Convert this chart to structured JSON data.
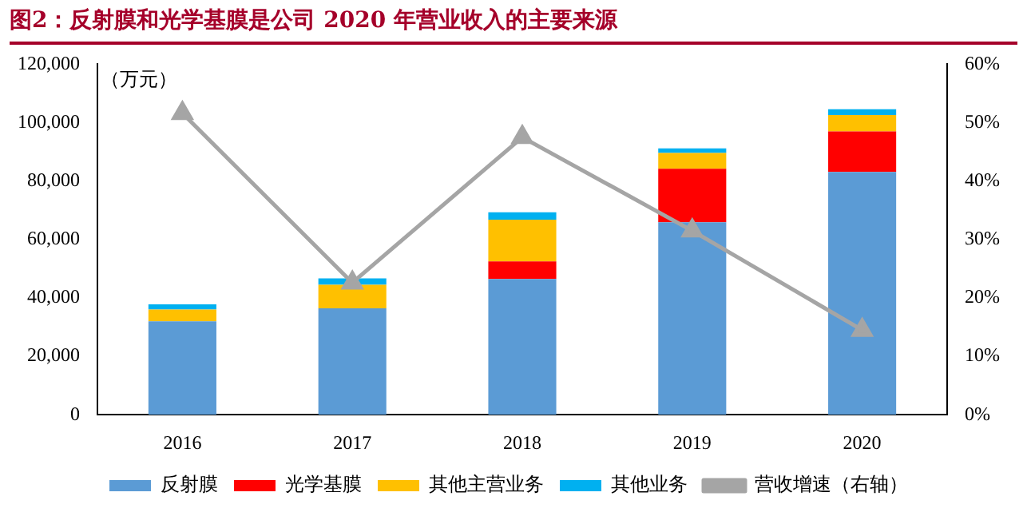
{
  "chart_data": {
    "type": "bar",
    "stacked": true,
    "title": "图2：反射膜和光学基膜是公司 2020 年营业收入的主要来源",
    "ylabel": "（万元）",
    "categories": [
      "2016",
      "2017",
      "2018",
      "2019",
      "2020"
    ],
    "series": [
      {
        "name": "反射膜",
        "color": "#5b9bd5",
        "values": [
          32000,
          36400,
          46500,
          65900,
          83100
        ]
      },
      {
        "name": "光学基膜",
        "color": "#ff0000",
        "values": [
          0,
          0,
          6000,
          18300,
          13900
        ]
      },
      {
        "name": "其他主营业务",
        "color": "#ffc000",
        "values": [
          4000,
          8100,
          14300,
          5400,
          5600
        ]
      },
      {
        "name": "其他业务",
        "color": "#00b0f0",
        "values": [
          1800,
          2200,
          2500,
          1600,
          2000
        ]
      },
      {
        "name": "营收增速（右轴）",
        "type": "line",
        "axis": "y2",
        "color": "#a5a5a5",
        "marker": "triangle",
        "values": [
          51.6,
          22.6,
          47.5,
          31.5,
          14.5
        ]
      }
    ],
    "ylim": [
      0,
      120000
    ],
    "yticks": [
      0,
      {
        "value": 20000,
        "label": "20,000"
      },
      {
        "value": 40000,
        "label": "40,000"
      },
      {
        "value": 60000,
        "label": "60,000"
      },
      {
        "value": 80000,
        "label": "80,000"
      },
      {
        "value": 100000,
        "label": "100,000"
      },
      {
        "value": 120000,
        "label": "120,000"
      }
    ],
    "y2lim": [
      0,
      60
    ],
    "y2ticks": [
      {
        "value": 0,
        "label": "0%"
      },
      {
        "value": 10,
        "label": "10%"
      },
      {
        "value": 20,
        "label": "20%"
      },
      {
        "value": 30,
        "label": "30%"
      },
      {
        "value": 40,
        "label": "40%"
      },
      {
        "value": 50,
        "label": "50%"
      },
      {
        "value": 60,
        "label": "60%"
      }
    ],
    "grid": false,
    "legend": "bottom"
  }
}
